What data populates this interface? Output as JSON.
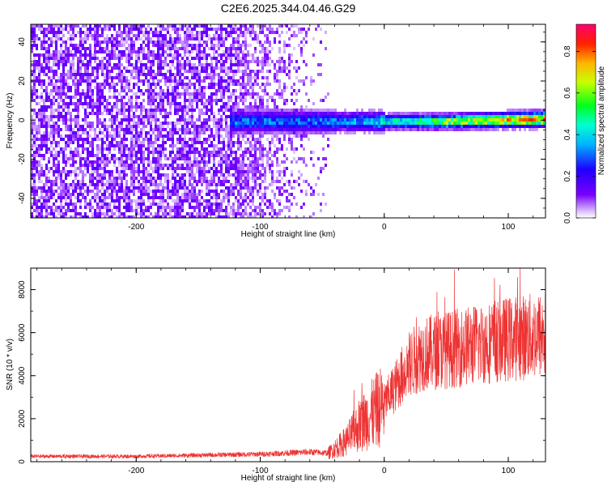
{
  "title": "C2E6.2025.344.04.46.G29",
  "chart_data": [
    {
      "type": "heatmap",
      "xlabel": "Height of straight line (km)",
      "ylabel": "Frequency (Hz)",
      "xlim": [
        -285,
        130
      ],
      "ylim": [
        -50,
        49
      ],
      "x_ticks": [
        -200,
        -100,
        0,
        100
      ],
      "y_ticks": [
        -40,
        -20,
        0,
        20,
        40
      ],
      "colorbar": {
        "label": "Normalized spectral amplitude",
        "range": [
          0,
          0.93
        ],
        "ticks": [
          0.0,
          0.2,
          0.4,
          0.6,
          0.8
        ],
        "colormap": "rainbow (purple-blue-cyan-green-yellow-red)"
      },
      "features": {
        "noise_region_x": [
          -285,
          -45
        ],
        "signal_start_x": -120,
        "signal_center_freq": 0,
        "signal_peak_amplitude": 0.9
      }
    },
    {
      "type": "line",
      "xlabel": "Height of straight line (km)",
      "ylabel": "SNR (10 * v/v)",
      "xlim": [
        -285,
        130
      ],
      "ylim": [
        0,
        9000
      ],
      "x_ticks": [
        -200,
        -100,
        0,
        100
      ],
      "y_ticks": [
        0,
        2000,
        4000,
        6000,
        8000
      ],
      "series": [
        {
          "color": "#ee3333",
          "trend": {
            "x": [
              -285,
              -200,
              -100,
              -60,
              -45,
              -40,
              -30,
              -20,
              -10,
              0,
              10,
              20,
              30,
              50,
              80,
              100,
              130
            ],
            "y": [
              250,
              250,
              350,
              450,
              400,
              600,
              1000,
              1700,
              2200,
              2700,
              3600,
              4500,
              5000,
              5200,
              5500,
              5700,
              5900
            ]
          }
        }
      ]
    }
  ]
}
